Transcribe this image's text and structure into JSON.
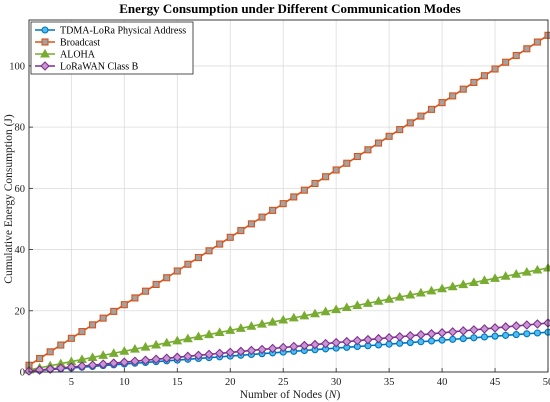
{
  "chart_data": {
    "type": "line",
    "title": "Energy Consumption under Different Communication Modes",
    "xlabel_text": "Number of Nodes (",
    "xlabel_var": "N",
    "xlabel_close": ")",
    "ylabel": "Cumulative Energy Consumption (J)",
    "xlim": [
      1,
      50
    ],
    "ylim": [
      0,
      115
    ],
    "xticks": [
      5,
      10,
      15,
      20,
      25,
      30,
      35,
      40,
      45,
      50
    ],
    "yticks": [
      0,
      20,
      40,
      60,
      80,
      100
    ],
    "grid": true,
    "legend_position": "top-left",
    "x": [
      1,
      2,
      3,
      4,
      5,
      6,
      7,
      8,
      9,
      10,
      11,
      12,
      13,
      14,
      15,
      16,
      17,
      18,
      19,
      20,
      21,
      22,
      23,
      24,
      25,
      26,
      27,
      28,
      29,
      30,
      31,
      32,
      33,
      34,
      35,
      36,
      37,
      38,
      39,
      40,
      41,
      42,
      43,
      44,
      45,
      46,
      47,
      48,
      49,
      50
    ],
    "series": [
      {
        "name": "TDMA-LoRa Physical Address",
        "color": "#0072BD",
        "fill": "#4DBEEE",
        "marker": "circle",
        "values": [
          0.26,
          0.52,
          0.78,
          1.04,
          1.3,
          1.56,
          1.82,
          2.08,
          2.34,
          2.6,
          2.86,
          3.12,
          3.38,
          3.64,
          3.9,
          4.16,
          4.42,
          4.68,
          4.94,
          5.2,
          5.46,
          5.72,
          5.98,
          6.24,
          6.5,
          6.76,
          7.02,
          7.28,
          7.54,
          7.8,
          8.06,
          8.32,
          8.58,
          8.84,
          9.1,
          9.36,
          9.62,
          9.88,
          10.14,
          10.4,
          10.66,
          10.92,
          11.18,
          11.44,
          11.7,
          11.96,
          12.22,
          12.48,
          12.74,
          13.0
        ]
      },
      {
        "name": "Broadcast",
        "color": "#D95319",
        "fill": "#A2A2A2",
        "marker": "square",
        "values": [
          2.2,
          4.4,
          6.6,
          8.8,
          11.0,
          13.2,
          15.4,
          17.6,
          19.8,
          22.0,
          24.2,
          26.4,
          28.6,
          30.8,
          33.0,
          35.2,
          37.4,
          39.6,
          41.8,
          44.0,
          46.2,
          48.4,
          50.6,
          52.8,
          55.0,
          57.2,
          59.4,
          61.6,
          63.8,
          66.0,
          68.2,
          70.4,
          72.6,
          74.8,
          77.0,
          79.2,
          81.4,
          83.6,
          85.8,
          88.0,
          90.2,
          92.4,
          94.6,
          96.8,
          99.0,
          101.2,
          103.4,
          105.6,
          107.8,
          110.0
        ]
      },
      {
        "name": "ALOHA",
        "color": "#77AC30",
        "fill": "#77AC30",
        "marker": "triangle",
        "values": [
          0.68,
          1.36,
          2.04,
          2.72,
          3.4,
          4.08,
          4.76,
          5.44,
          6.12,
          6.8,
          7.48,
          8.16,
          8.84,
          9.52,
          10.2,
          10.88,
          11.56,
          12.24,
          12.92,
          13.6,
          14.28,
          14.96,
          15.64,
          16.32,
          17.0,
          17.68,
          18.36,
          19.04,
          19.72,
          20.4,
          21.08,
          21.76,
          22.44,
          23.12,
          23.8,
          24.48,
          25.16,
          25.84,
          26.52,
          27.2,
          27.88,
          28.56,
          29.24,
          29.92,
          30.6,
          31.28,
          31.96,
          32.64,
          33.32,
          34.0
        ]
      },
      {
        "name": "LoRaWAN Class B",
        "color": "#7E2F8E",
        "fill": "#C896D2",
        "marker": "diamond",
        "values": [
          0.32,
          0.64,
          0.96,
          1.28,
          1.6,
          1.92,
          2.24,
          2.56,
          2.88,
          3.2,
          3.52,
          3.84,
          4.16,
          4.48,
          4.8,
          5.12,
          5.44,
          5.76,
          6.08,
          6.4,
          6.72,
          7.04,
          7.36,
          7.68,
          8.0,
          8.32,
          8.64,
          8.96,
          9.28,
          9.6,
          9.92,
          10.24,
          10.56,
          10.88,
          11.2,
          11.52,
          11.84,
          12.16,
          12.48,
          12.8,
          13.12,
          13.44,
          13.76,
          14.08,
          14.4,
          14.72,
          15.04,
          15.36,
          15.68,
          16.0
        ]
      }
    ]
  }
}
